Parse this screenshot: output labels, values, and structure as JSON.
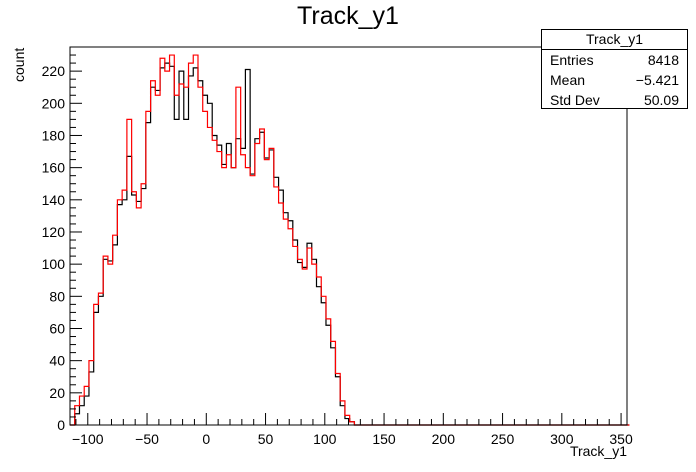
{
  "title": "Track_y1",
  "stats": {
    "title": "Track_y1",
    "rows": [
      {
        "key": "Entries",
        "value": "8418"
      },
      {
        "key": "Mean",
        "value": "−5.421"
      },
      {
        "key": "Std Dev",
        "value": "50.09"
      }
    ]
  },
  "chart_data": {
    "type": "histogram",
    "title": "Track_y1",
    "xlabel": "Track_y1",
    "ylabel": "count",
    "xlim": [
      -115,
      355
    ],
    "ylim": [
      0,
      235
    ],
    "xticks": [
      -100,
      -50,
      0,
      50,
      100,
      150,
      200,
      250,
      300,
      350
    ],
    "yticks": [
      0,
      20,
      40,
      60,
      80,
      100,
      120,
      140,
      160,
      180,
      200,
      220
    ],
    "bin_width": 4.0,
    "grid": false,
    "series": [
      {
        "color": "#000000",
        "bin_start": -115,
        "values": [
          0,
          7,
          12,
          18,
          33,
          70,
          80,
          103,
          102,
          112,
          137,
          140,
          167,
          143,
          139,
          147,
          188,
          210,
          208,
          222,
          225,
          223,
          190,
          220,
          190,
          217,
          222,
          214,
          205,
          200,
          180,
          174,
          162,
          175,
          160,
          178,
          172,
          221,
          156,
          178,
          182,
          166,
          171,
          154,
          146,
          132,
          127,
          115,
          101,
          98,
          113,
          103,
          86,
          76,
          62,
          48,
          30,
          12,
          4,
          2,
          0,
          0,
          0,
          0,
          0,
          0,
          0,
          0,
          0,
          0,
          0,
          0,
          0,
          0,
          0,
          0,
          0,
          0,
          0,
          0,
          0,
          0,
          0,
          0,
          0,
          0,
          0,
          0,
          0,
          0,
          0,
          0,
          0,
          0,
          0,
          0,
          0,
          0,
          0,
          0,
          0,
          0,
          0,
          0,
          0,
          0,
          0,
          0,
          0,
          0,
          0,
          0,
          0,
          0,
          0,
          0,
          0,
          0
        ]
      },
      {
        "color": "#ff0000",
        "bin_start": -115,
        "values": [
          0,
          12,
          18,
          24,
          40,
          75,
          82,
          105,
          100,
          118,
          140,
          146,
          190,
          145,
          135,
          150,
          195,
          214,
          205,
          228,
          220,
          230,
          205,
          212,
          210,
          225,
          230,
          210,
          195,
          185,
          177,
          170,
          160,
          168,
          160,
          210,
          168,
          160,
          155,
          175,
          184,
          165,
          172,
          148,
          138,
          128,
          122,
          111,
          103,
          97,
          110,
          100,
          92,
          80,
          66,
          52,
          32,
          15,
          6,
          2,
          0,
          0,
          0,
          0,
          0,
          0,
          0,
          0,
          0,
          0,
          0,
          0,
          0,
          0,
          0,
          0,
          0,
          0,
          0,
          0,
          0,
          0,
          0,
          0,
          0,
          0,
          0,
          0,
          0,
          0,
          0,
          0,
          0,
          0,
          0,
          0,
          0,
          0,
          0,
          0,
          0,
          0,
          0,
          0,
          0,
          0,
          0,
          0,
          0,
          0,
          0,
          0,
          0,
          0,
          0,
          0,
          0,
          0
        ]
      }
    ]
  }
}
